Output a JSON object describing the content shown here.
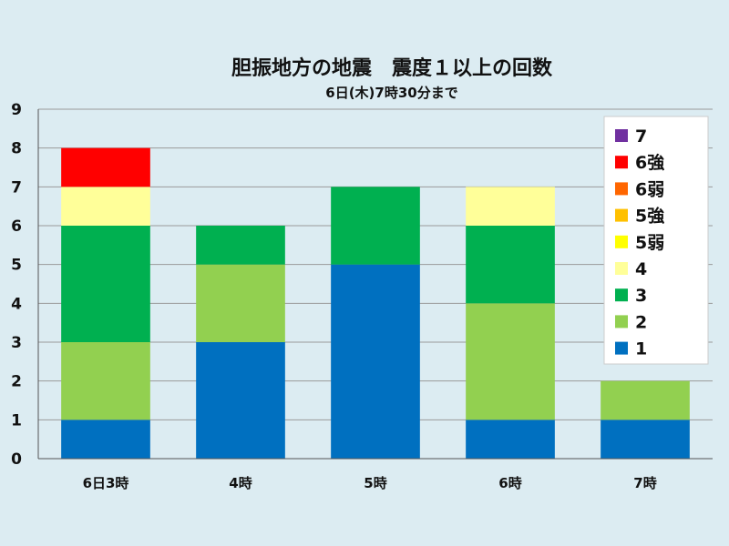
{
  "chart_data": {
    "type": "bar",
    "stacked": true,
    "title": "胆振地方の地震　震度１以上の回数",
    "subtitle": "6日(木)7時30分まで",
    "categories": [
      "6日3時",
      "4時",
      "5時",
      "6時",
      "7時"
    ],
    "ylim": [
      0,
      9
    ],
    "yticks": [
      0,
      1,
      2,
      3,
      4,
      5,
      6,
      7,
      8,
      9
    ],
    "grid": true,
    "legend_position": "right",
    "series": [
      {
        "name": "1",
        "color": "#0070c0",
        "values": [
          1,
          3,
          5,
          1,
          1
        ]
      },
      {
        "name": "2",
        "color": "#92d050",
        "values": [
          2,
          2,
          0,
          3,
          1
        ]
      },
      {
        "name": "3",
        "color": "#00b050",
        "values": [
          3,
          1,
          2,
          2,
          0
        ]
      },
      {
        "name": "4",
        "color": "#ffff99",
        "values": [
          1,
          0,
          0,
          1,
          0
        ]
      },
      {
        "name": "5弱",
        "color": "#ffff00",
        "values": [
          0,
          0,
          0,
          0,
          0
        ]
      },
      {
        "name": "5強",
        "color": "#ffc000",
        "values": [
          0,
          0,
          0,
          0,
          0
        ]
      },
      {
        "name": "6弱",
        "color": "#ff6600",
        "values": [
          0,
          0,
          0,
          0,
          0
        ]
      },
      {
        "name": "6強",
        "color": "#ff0000",
        "values": [
          1,
          0,
          0,
          0,
          0
        ]
      },
      {
        "name": "7",
        "color": "#7030a0",
        "values": [
          0,
          0,
          0,
          0,
          0
        ]
      }
    ]
  }
}
